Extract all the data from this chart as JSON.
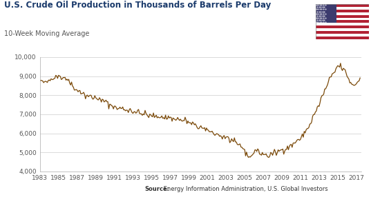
{
  "title": "U.S. Crude Oil Production in Thousands of Barrels Per Day",
  "subtitle": "10-Week Moving Average",
  "source_label": "Source:",
  "source_text": " Energy Information Administration, U.S. Global Investors",
  "line_color": "#7B4A0A",
  "background_color": "#FFFFFF",
  "ylim": [
    4000,
    10000
  ],
  "yticks": [
    4000,
    5000,
    6000,
    7000,
    8000,
    9000,
    10000
  ],
  "xticks": [
    1983,
    1985,
    1987,
    1989,
    1991,
    1993,
    1995,
    1997,
    1999,
    2001,
    2003,
    2005,
    2007,
    2009,
    2011,
    2013,
    2015,
    2017
  ],
  "title_color": "#1A3A6B",
  "subtitle_color": "#555555",
  "tick_color": "#555555",
  "data": [
    [
      1983.0,
      8688
    ],
    [
      1983.1,
      8720
    ],
    [
      1983.2,
      8695
    ],
    [
      1983.3,
      8710
    ],
    [
      1983.4,
      8680
    ],
    [
      1983.5,
      8700
    ],
    [
      1983.6,
      8690
    ],
    [
      1983.7,
      8715
    ],
    [
      1983.8,
      8700
    ],
    [
      1983.9,
      8680
    ],
    [
      1984.0,
      8760
    ],
    [
      1984.1,
      8820
    ],
    [
      1984.2,
      8870
    ],
    [
      1984.3,
      8910
    ],
    [
      1984.4,
      8950
    ],
    [
      1984.5,
      8960
    ],
    [
      1984.6,
      8980
    ],
    [
      1984.7,
      8990
    ],
    [
      1984.8,
      8980
    ],
    [
      1984.9,
      8970
    ],
    [
      1985.0,
      8990
    ],
    [
      1985.1,
      9000
    ],
    [
      1985.2,
      8980
    ],
    [
      1985.3,
      8960
    ],
    [
      1985.4,
      8950
    ],
    [
      1985.5,
      8930
    ],
    [
      1985.6,
      8910
    ],
    [
      1985.7,
      8880
    ],
    [
      1985.8,
      8860
    ],
    [
      1985.9,
      8840
    ],
    [
      1986.0,
      8800
    ],
    [
      1986.1,
      8750
    ],
    [
      1986.2,
      8700
    ],
    [
      1986.3,
      8650
    ],
    [
      1986.4,
      8580
    ],
    [
      1986.5,
      8500
    ],
    [
      1986.6,
      8430
    ],
    [
      1986.7,
      8380
    ],
    [
      1986.8,
      8330
    ],
    [
      1986.9,
      8290
    ],
    [
      1987.0,
      8270
    ],
    [
      1987.1,
      8250
    ],
    [
      1987.2,
      8220
    ],
    [
      1987.3,
      8190
    ],
    [
      1987.4,
      8160
    ],
    [
      1987.5,
      8130
    ],
    [
      1987.6,
      8100
    ],
    [
      1987.7,
      8070
    ],
    [
      1987.8,
      8040
    ],
    [
      1987.9,
      8010
    ],
    [
      1988.0,
      7980
    ],
    [
      1988.1,
      7960
    ],
    [
      1988.2,
      7945
    ],
    [
      1988.3,
      7930
    ],
    [
      1988.4,
      7920
    ],
    [
      1988.5,
      7910
    ],
    [
      1988.6,
      7900
    ],
    [
      1988.7,
      7890
    ],
    [
      1988.8,
      7880
    ],
    [
      1988.9,
      7870
    ],
    [
      1989.0,
      7860
    ],
    [
      1989.1,
      7840
    ],
    [
      1989.2,
      7820
    ],
    [
      1989.3,
      7800
    ],
    [
      1989.4,
      7780
    ],
    [
      1989.5,
      7760
    ],
    [
      1989.6,
      7740
    ],
    [
      1989.7,
      7720
    ],
    [
      1989.8,
      7700
    ],
    [
      1989.9,
      7680
    ],
    [
      1990.0,
      7660
    ],
    [
      1990.1,
      7630
    ],
    [
      1990.2,
      7600
    ],
    [
      1990.3,
      7570
    ],
    [
      1990.4,
      7540
    ],
    [
      1990.5,
      7510
    ],
    [
      1990.6,
      7480
    ],
    [
      1990.7,
      7450
    ],
    [
      1990.8,
      7420
    ],
    [
      1990.9,
      7400
    ],
    [
      1991.0,
      7380
    ],
    [
      1991.1,
      7365
    ],
    [
      1991.2,
      7350
    ],
    [
      1991.3,
      7340
    ],
    [
      1991.4,
      7330
    ],
    [
      1991.5,
      7320
    ],
    [
      1991.6,
      7310
    ],
    [
      1991.7,
      7300
    ],
    [
      1991.8,
      7290
    ],
    [
      1991.9,
      7280
    ],
    [
      1992.0,
      7270
    ],
    [
      1992.1,
      7255
    ],
    [
      1992.2,
      7240
    ],
    [
      1992.3,
      7230
    ],
    [
      1992.4,
      7215
    ],
    [
      1992.5,
      7200
    ],
    [
      1992.6,
      7200
    ],
    [
      1992.7,
      7195
    ],
    [
      1992.8,
      7190
    ],
    [
      1992.9,
      7180
    ],
    [
      1993.0,
      7170
    ],
    [
      1993.1,
      7155
    ],
    [
      1993.2,
      7140
    ],
    [
      1993.3,
      7125
    ],
    [
      1993.4,
      7110
    ],
    [
      1993.5,
      7100
    ],
    [
      1993.6,
      7090
    ],
    [
      1993.7,
      7080
    ],
    [
      1993.8,
      7065
    ],
    [
      1993.9,
      7055
    ],
    [
      1994.0,
      7040
    ],
    [
      1994.1,
      7025
    ],
    [
      1994.2,
      7010
    ],
    [
      1994.3,
      6995
    ],
    [
      1994.4,
      6980
    ],
    [
      1994.5,
      6965
    ],
    [
      1994.6,
      6950
    ],
    [
      1994.7,
      6940
    ],
    [
      1994.8,
      6930
    ],
    [
      1994.9,
      6920
    ],
    [
      1995.0,
      6910
    ],
    [
      1995.1,
      6900
    ],
    [
      1995.2,
      6895
    ],
    [
      1995.3,
      6890
    ],
    [
      1995.4,
      6880
    ],
    [
      1995.5,
      6875
    ],
    [
      1995.6,
      6880
    ],
    [
      1995.7,
      6875
    ],
    [
      1995.8,
      6870
    ],
    [
      1995.9,
      6865
    ],
    [
      1996.0,
      6860
    ],
    [
      1996.1,
      6855
    ],
    [
      1996.2,
      6850
    ],
    [
      1996.3,
      6845
    ],
    [
      1996.4,
      6840
    ],
    [
      1996.5,
      6835
    ],
    [
      1996.6,
      6830
    ],
    [
      1996.7,
      6825
    ],
    [
      1996.8,
      6820
    ],
    [
      1996.9,
      6810
    ],
    [
      1997.0,
      6800
    ],
    [
      1997.1,
      6790
    ],
    [
      1997.2,
      6780
    ],
    [
      1997.3,
      6770
    ],
    [
      1997.4,
      6760
    ],
    [
      1997.5,
      6755
    ],
    [
      1997.6,
      6750
    ],
    [
      1997.7,
      6745
    ],
    [
      1997.8,
      6740
    ],
    [
      1997.9,
      6730
    ],
    [
      1998.0,
      6720
    ],
    [
      1998.1,
      6710
    ],
    [
      1998.2,
      6700
    ],
    [
      1998.3,
      6690
    ],
    [
      1998.4,
      6680
    ],
    [
      1998.5,
      6670
    ],
    [
      1998.6,
      6660
    ],
    [
      1998.7,
      6645
    ],
    [
      1998.8,
      6630
    ],
    [
      1998.9,
      6615
    ],
    [
      1999.0,
      6590
    ],
    [
      1999.1,
      6560
    ],
    [
      1999.2,
      6530
    ],
    [
      1999.3,
      6500
    ],
    [
      1999.4,
      6475
    ],
    [
      1999.5,
      6450
    ],
    [
      1999.6,
      6430
    ],
    [
      1999.7,
      6410
    ],
    [
      1999.8,
      6390
    ],
    [
      1999.9,
      6370
    ],
    [
      2000.0,
      6350
    ],
    [
      2000.1,
      6330
    ],
    [
      2000.2,
      6310
    ],
    [
      2000.3,
      6290
    ],
    [
      2000.4,
      6270
    ],
    [
      2000.5,
      6250
    ],
    [
      2000.6,
      6230
    ],
    [
      2000.7,
      6210
    ],
    [
      2000.8,
      6190
    ],
    [
      2000.9,
      6170
    ],
    [
      2001.0,
      6150
    ],
    [
      2001.1,
      6130
    ],
    [
      2001.2,
      6110
    ],
    [
      2001.3,
      6090
    ],
    [
      2001.4,
      6070
    ],
    [
      2001.5,
      6050
    ],
    [
      2001.6,
      6030
    ],
    [
      2001.7,
      6010
    ],
    [
      2001.8,
      5990
    ],
    [
      2001.9,
      5970
    ],
    [
      2002.0,
      5950
    ],
    [
      2002.1,
      5930
    ],
    [
      2002.2,
      5910
    ],
    [
      2002.3,
      5890
    ],
    [
      2002.4,
      5870
    ],
    [
      2002.5,
      5850
    ],
    [
      2002.6,
      5830
    ],
    [
      2002.7,
      5810
    ],
    [
      2002.8,
      5800
    ],
    [
      2002.9,
      5790
    ],
    [
      2003.0,
      5780
    ],
    [
      2003.1,
      5760
    ],
    [
      2003.2,
      5740
    ],
    [
      2003.3,
      5710
    ],
    [
      2003.4,
      5680
    ],
    [
      2003.5,
      5650
    ],
    [
      2003.6,
      5610
    ],
    [
      2003.7,
      5570
    ],
    [
      2003.8,
      5540
    ],
    [
      2003.9,
      5510
    ],
    [
      2004.0,
      5490
    ],
    [
      2004.1,
      5470
    ],
    [
      2004.2,
      5450
    ],
    [
      2004.3,
      5420
    ],
    [
      2004.4,
      5390
    ],
    [
      2004.5,
      5360
    ],
    [
      2004.6,
      5330
    ],
    [
      2004.7,
      5270
    ],
    [
      2004.8,
      5200
    ],
    [
      2004.9,
      5130
    ],
    [
      2005.0,
      5060
    ],
    [
      2005.1,
      5020
    ],
    [
      2005.2,
      4960
    ],
    [
      2005.3,
      4880
    ],
    [
      2005.4,
      4760
    ],
    [
      2005.5,
      4700
    ],
    [
      2005.6,
      4730
    ],
    [
      2005.7,
      4820
    ],
    [
      2005.8,
      4900
    ],
    [
      2005.9,
      4970
    ],
    [
      2006.0,
      5030
    ],
    [
      2006.1,
      5080
    ],
    [
      2006.2,
      5110
    ],
    [
      2006.3,
      5080
    ],
    [
      2006.4,
      5050
    ],
    [
      2006.5,
      5020
    ],
    [
      2006.6,
      4990
    ],
    [
      2006.7,
      4970
    ],
    [
      2006.8,
      4950
    ],
    [
      2006.9,
      4930
    ],
    [
      2007.0,
      4910
    ],
    [
      2007.1,
      4890
    ],
    [
      2007.2,
      4860
    ],
    [
      2007.3,
      4830
    ],
    [
      2007.4,
      4810
    ],
    [
      2007.5,
      4820
    ],
    [
      2007.6,
      4840
    ],
    [
      2007.7,
      4860
    ],
    [
      2007.8,
      4880
    ],
    [
      2007.9,
      4910
    ],
    [
      2008.0,
      4940
    ],
    [
      2008.1,
      4920
    ],
    [
      2008.2,
      4940
    ],
    [
      2008.3,
      4970
    ],
    [
      2008.4,
      5010
    ],
    [
      2008.5,
      5040
    ],
    [
      2008.6,
      5060
    ],
    [
      2008.7,
      5080
    ],
    [
      2008.8,
      5090
    ],
    [
      2008.9,
      5100
    ],
    [
      2009.0,
      5110
    ],
    [
      2009.1,
      5130
    ],
    [
      2009.2,
      5150
    ],
    [
      2009.3,
      5170
    ],
    [
      2009.4,
      5190
    ],
    [
      2009.5,
      5210
    ],
    [
      2009.6,
      5240
    ],
    [
      2009.7,
      5260
    ],
    [
      2009.8,
      5280
    ],
    [
      2009.9,
      5310
    ],
    [
      2010.0,
      5350
    ],
    [
      2010.1,
      5400
    ],
    [
      2010.2,
      5450
    ],
    [
      2010.3,
      5490
    ],
    [
      2010.4,
      5530
    ],
    [
      2010.5,
      5560
    ],
    [
      2010.6,
      5590
    ],
    [
      2010.7,
      5620
    ],
    [
      2010.8,
      5650
    ],
    [
      2010.9,
      5690
    ],
    [
      2011.0,
      5730
    ],
    [
      2011.1,
      5790
    ],
    [
      2011.2,
      5850
    ],
    [
      2011.3,
      5920
    ],
    [
      2011.4,
      5990
    ],
    [
      2011.5,
      6060
    ],
    [
      2011.6,
      6130
    ],
    [
      2011.7,
      6210
    ],
    [
      2011.8,
      6290
    ],
    [
      2011.9,
      6380
    ],
    [
      2012.0,
      6470
    ],
    [
      2012.1,
      6570
    ],
    [
      2012.2,
      6680
    ],
    [
      2012.3,
      6790
    ],
    [
      2012.4,
      6900
    ],
    [
      2012.5,
      7000
    ],
    [
      2012.6,
      7100
    ],
    [
      2012.7,
      7200
    ],
    [
      2012.8,
      7310
    ],
    [
      2012.9,
      7420
    ],
    [
      2013.0,
      7530
    ],
    [
      2013.1,
      7640
    ],
    [
      2013.2,
      7760
    ],
    [
      2013.3,
      7880
    ],
    [
      2013.4,
      8000
    ],
    [
      2013.5,
      8120
    ],
    [
      2013.6,
      8240
    ],
    [
      2013.7,
      8360
    ],
    [
      2013.8,
      8470
    ],
    [
      2013.9,
      8580
    ],
    [
      2014.0,
      8690
    ],
    [
      2014.1,
      8790
    ],
    [
      2014.2,
      8880
    ],
    [
      2014.3,
      8970
    ],
    [
      2014.4,
      9050
    ],
    [
      2014.5,
      9120
    ],
    [
      2014.6,
      9200
    ],
    [
      2014.7,
      9280
    ],
    [
      2014.8,
      9360
    ],
    [
      2014.9,
      9420
    ],
    [
      2015.0,
      9480
    ],
    [
      2015.1,
      9520
    ],
    [
      2015.2,
      9550
    ],
    [
      2015.3,
      9520
    ],
    [
      2015.4,
      9480
    ],
    [
      2015.5,
      9430
    ],
    [
      2015.6,
      9370
    ],
    [
      2015.7,
      9290
    ],
    [
      2015.8,
      9210
    ],
    [
      2015.9,
      9120
    ],
    [
      2016.0,
      9030
    ],
    [
      2016.1,
      8940
    ],
    [
      2016.2,
      8840
    ],
    [
      2016.3,
      8740
    ],
    [
      2016.4,
      8660
    ],
    [
      2016.5,
      8590
    ],
    [
      2016.6,
      8530
    ],
    [
      2016.7,
      8510
    ],
    [
      2016.8,
      8530
    ],
    [
      2016.9,
      8570
    ],
    [
      2017.0,
      8630
    ],
    [
      2017.1,
      8700
    ],
    [
      2017.2,
      8770
    ],
    [
      2017.3,
      8830
    ],
    [
      2017.4,
      8870
    ]
  ],
  "noise_seed": 42,
  "noise_amplitude": 120
}
